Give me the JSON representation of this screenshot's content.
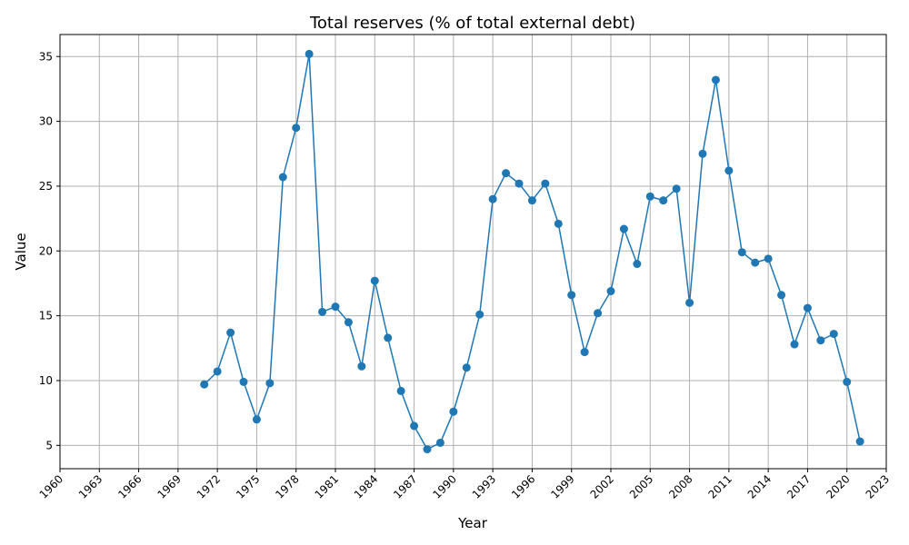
{
  "chart_data": {
    "type": "line",
    "title": "Total reserves (% of total external debt)",
    "xlabel": "Year",
    "ylabel": "Value",
    "xlim": [
      1960,
      2023
    ],
    "ylim": [
      3.2,
      36.7
    ],
    "x_ticks": [
      1960,
      1963,
      1966,
      1969,
      1972,
      1975,
      1978,
      1981,
      1984,
      1987,
      1990,
      1993,
      1996,
      1999,
      2002,
      2005,
      2008,
      2011,
      2014,
      2017,
      2020,
      2023
    ],
    "y_ticks": [
      5,
      10,
      15,
      20,
      25,
      30,
      35
    ],
    "grid": true,
    "series": [
      {
        "color": "#1f77b4",
        "marker": "circle",
        "x": [
          1971,
          1972,
          1973,
          1974,
          1975,
          1976,
          1977,
          1978,
          1979,
          1980,
          1981,
          1982,
          1983,
          1984,
          1985,
          1986,
          1987,
          1988,
          1989,
          1990,
          1991,
          1992,
          1993,
          1994,
          1995,
          1996,
          1997,
          1998,
          1999,
          2000,
          2001,
          2002,
          2003,
          2004,
          2005,
          2006,
          2007,
          2008,
          2009,
          2010,
          2011,
          2012,
          2013,
          2014,
          2015,
          2016,
          2017,
          2018,
          2019,
          2020,
          2021
        ],
        "values": [
          9.7,
          10.7,
          13.7,
          9.9,
          7.0,
          9.8,
          25.7,
          29.5,
          35.2,
          15.3,
          15.7,
          14.5,
          11.1,
          17.7,
          13.3,
          9.2,
          6.5,
          4.7,
          5.2,
          7.6,
          11.0,
          15.1,
          24.0,
          26.0,
          25.2,
          23.9,
          25.2,
          22.1,
          16.6,
          12.2,
          15.2,
          16.9,
          21.7,
          19.0,
          24.2,
          23.9,
          24.8,
          16.0,
          27.5,
          33.2,
          26.2,
          19.9,
          19.1,
          19.4,
          16.6,
          12.8,
          15.6,
          13.1,
          13.6,
          9.9,
          5.3
        ]
      }
    ]
  }
}
